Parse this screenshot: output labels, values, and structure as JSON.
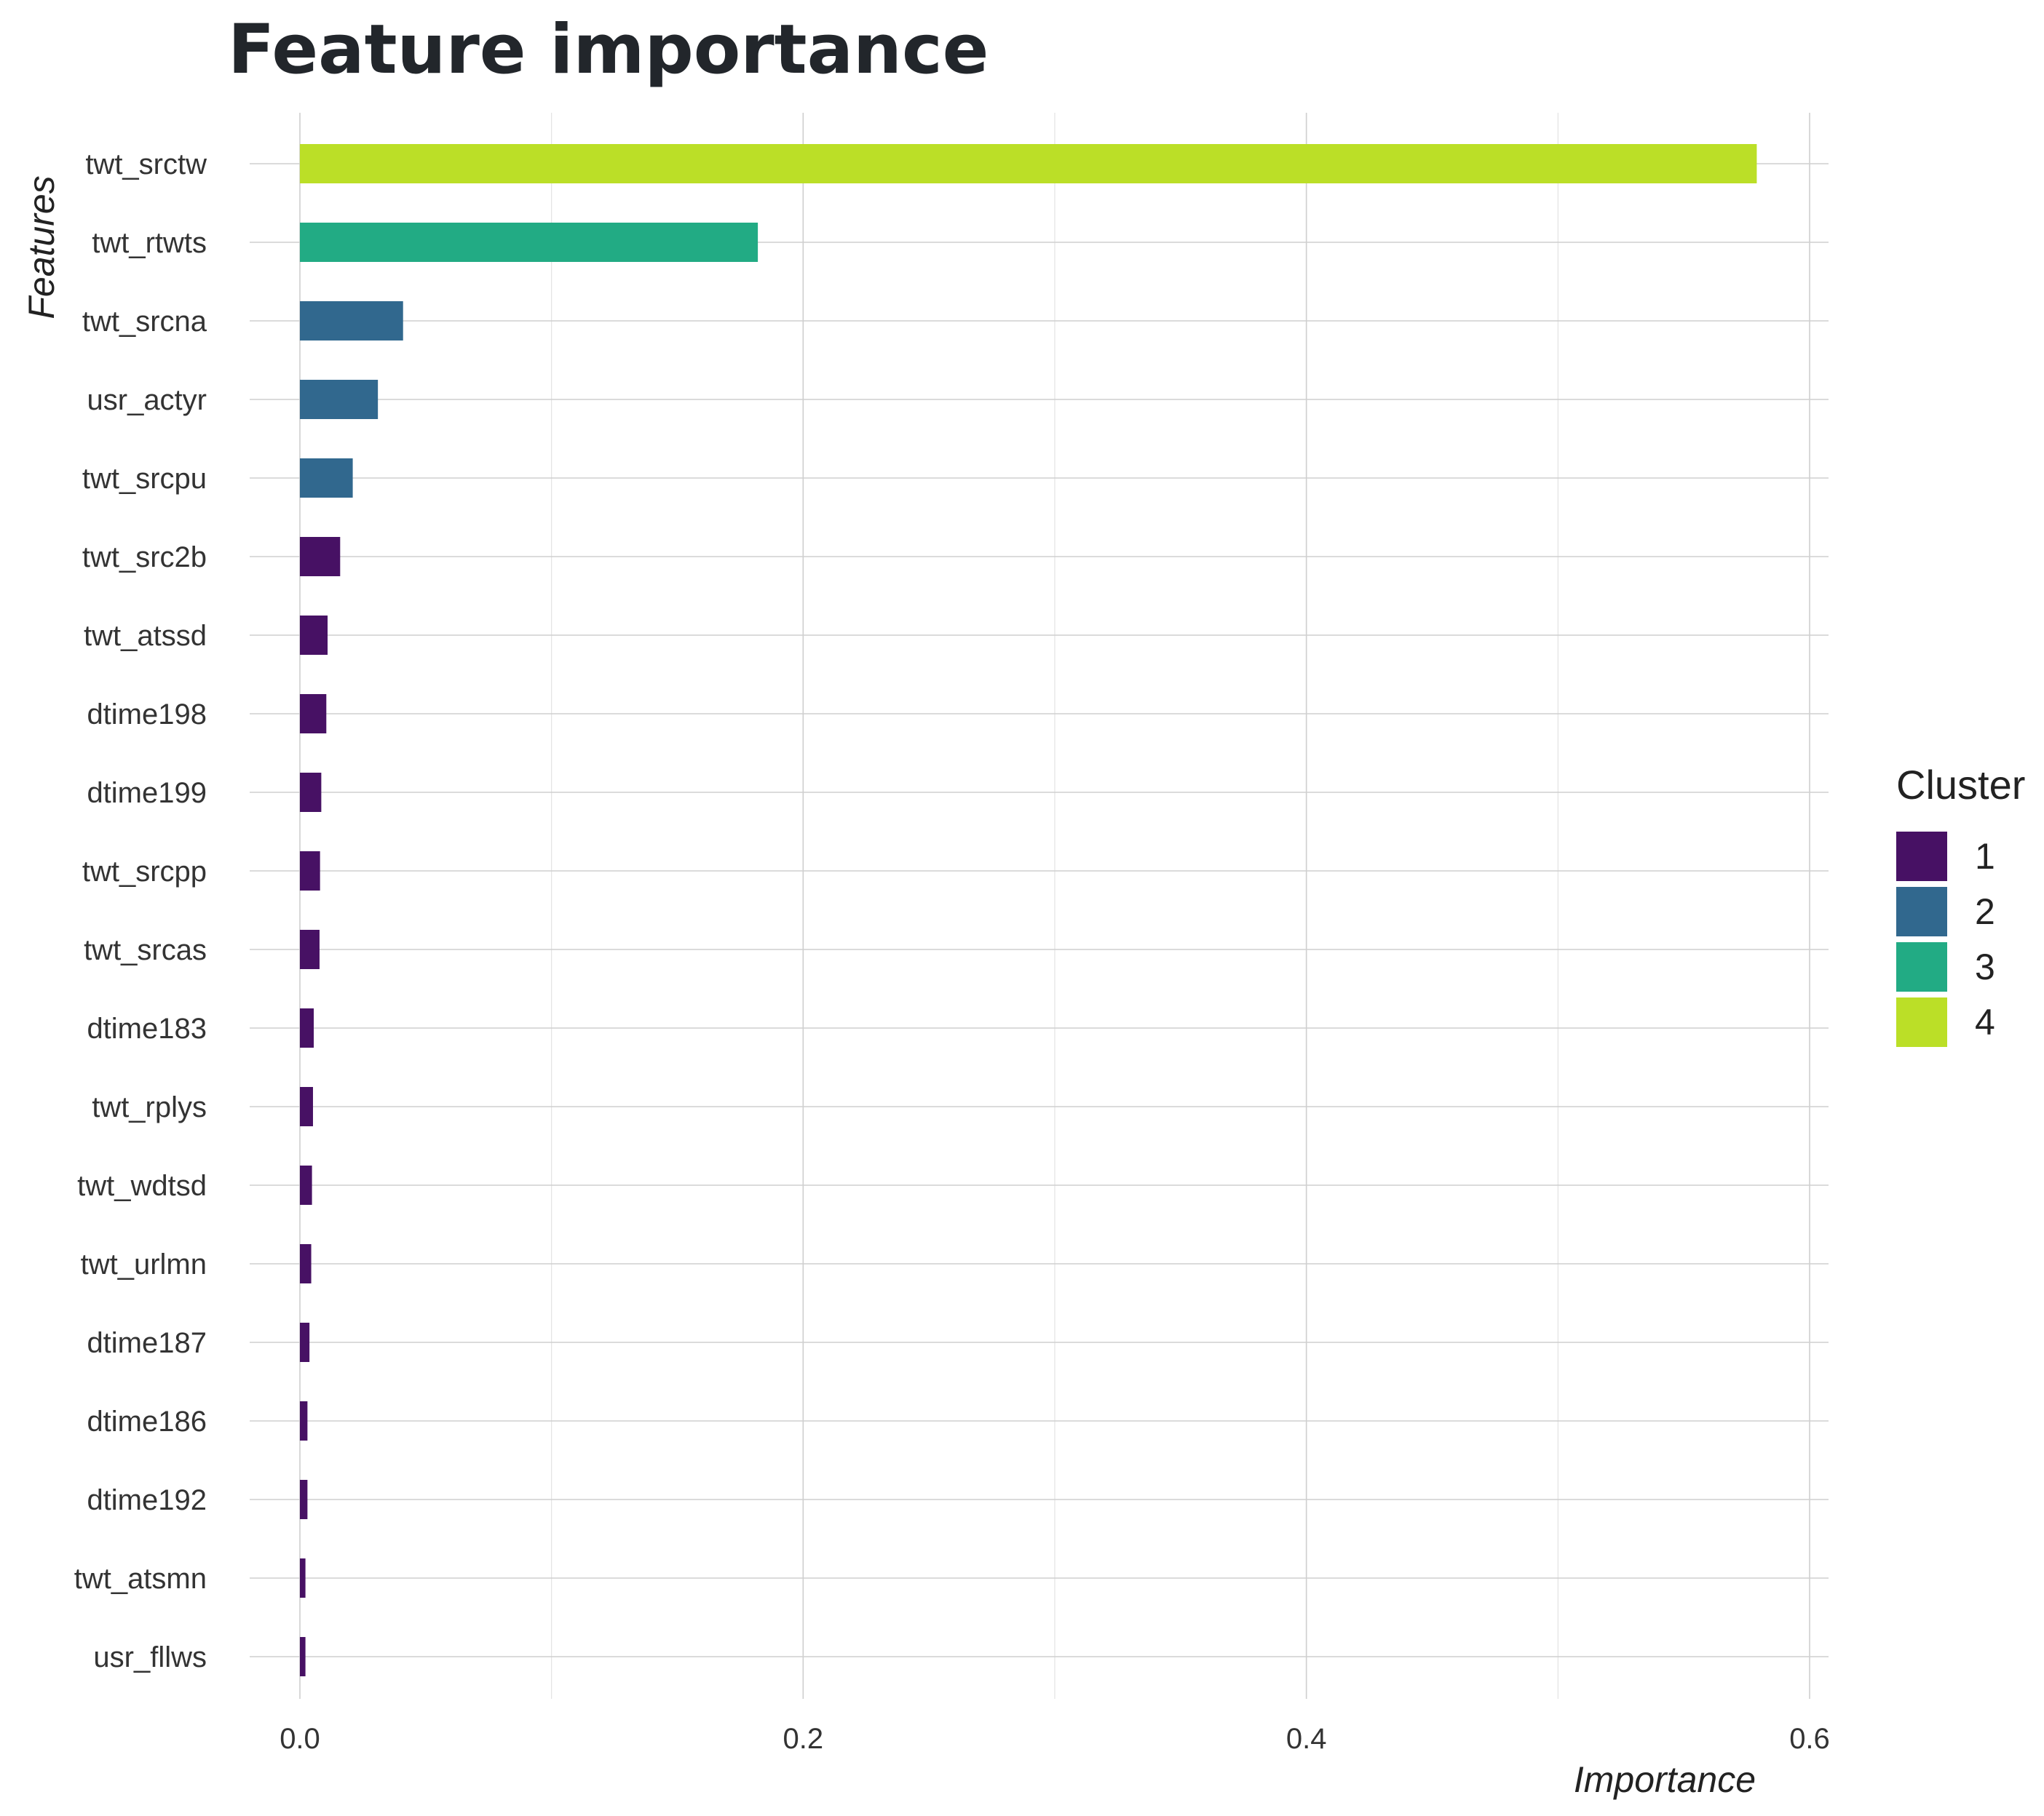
{
  "chart_data": {
    "type": "bar",
    "orientation": "horizontal",
    "title": "Feature importance",
    "xlabel": "Importance",
    "ylabel": "Features",
    "xlim": [
      -0.028,
      0.608
    ],
    "x_ticks": [
      0.0,
      0.2,
      0.4,
      0.6
    ],
    "x_tick_labels": [
      "0.0",
      "0.2",
      "0.4",
      "0.6"
    ],
    "grid": true,
    "legend": {
      "title": "Cluster",
      "placement": "right",
      "entries": [
        {
          "label": "1",
          "color": "#471164"
        },
        {
          "label": "2",
          "color": "#31688e"
        },
        {
          "label": "3",
          "color": "#22ab84"
        },
        {
          "label": "4",
          "color": "#bbdf27"
        }
      ]
    },
    "categories": [
      "twt_srctw",
      "twt_rtwts",
      "twt_srcna",
      "usr_actyr",
      "twt_srcpu",
      "twt_src2b",
      "twt_atssd",
      "dtime198",
      "dtime199",
      "twt_srcpp",
      "twt_srcas",
      "dtime183",
      "twt_rplys",
      "twt_wdtsd",
      "twt_urlmn",
      "dtime187",
      "dtime186",
      "dtime192",
      "twt_atsmn",
      "usr_fllws"
    ],
    "values": [
      0.579,
      0.182,
      0.041,
      0.031,
      0.021,
      0.016,
      0.011,
      0.0105,
      0.0085,
      0.008,
      0.0078,
      0.0055,
      0.0052,
      0.0048,
      0.0045,
      0.0038,
      0.003,
      0.003,
      0.0022,
      0.0022
    ],
    "clusters": [
      "4",
      "3",
      "2",
      "2",
      "2",
      "1",
      "1",
      "1",
      "1",
      "1",
      "1",
      "1",
      "1",
      "1",
      "1",
      "1",
      "1",
      "1",
      "1",
      "1"
    ]
  }
}
